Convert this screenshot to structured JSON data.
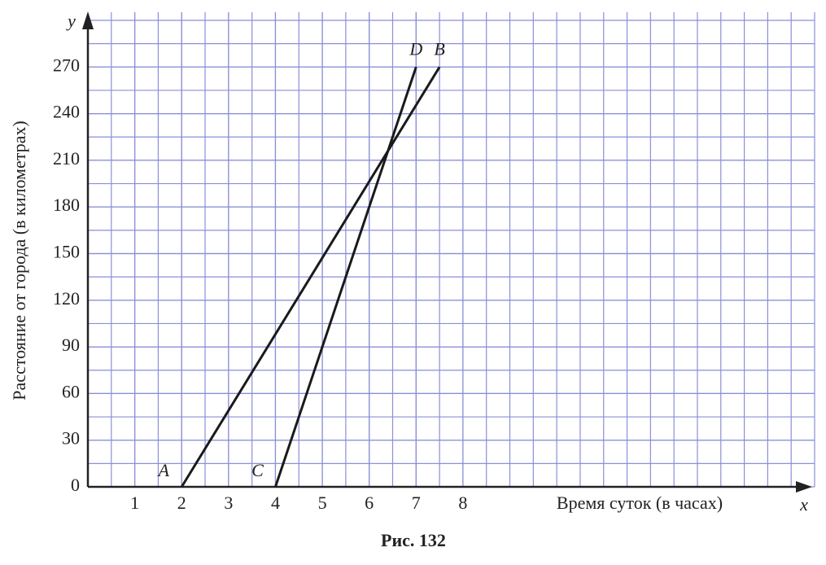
{
  "chart_data": {
    "type": "line",
    "xlabel": "Время суток (в часах)",
    "ylabel": "Расстояние от города (в километрах)",
    "x_axis_letter": "x",
    "y_axis_letter": "y",
    "caption": "Рис. 132",
    "xlim": [
      0,
      15.5
    ],
    "ylim": [
      0,
      300
    ],
    "xticks": [
      1,
      2,
      3,
      4,
      5,
      6,
      7,
      8
    ],
    "yticks": [
      0,
      30,
      60,
      90,
      120,
      150,
      180,
      210,
      240,
      270
    ],
    "grid": true,
    "grid_color": "#8a8fd8",
    "series": [
      {
        "color": "#1a1a1a",
        "x": [
          2,
          7.5
        ],
        "values": [
          0,
          270
        ],
        "point_labels": [
          "A",
          "B"
        ]
      },
      {
        "color": "#1a1a1a",
        "x": [
          4,
          7
        ],
        "values": [
          0,
          270
        ],
        "point_labels": [
          "C",
          "D"
        ]
      }
    ]
  }
}
